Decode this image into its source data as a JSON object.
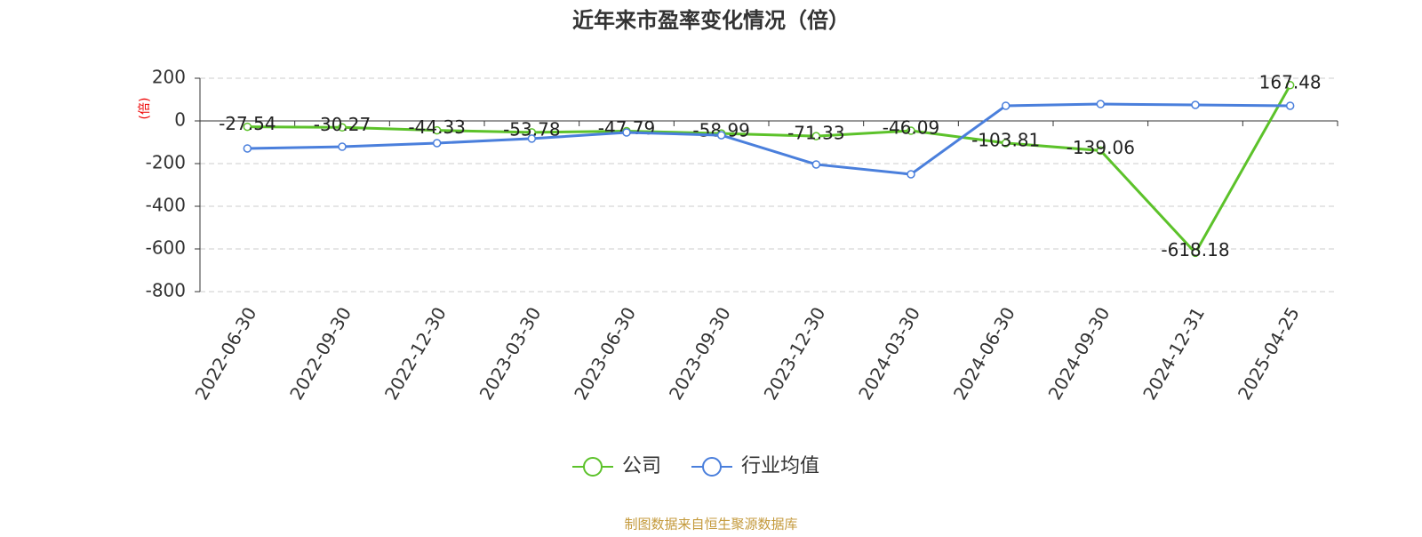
{
  "chart_data": {
    "type": "line",
    "title": "近年来市盈率变化情况（倍）",
    "y_label": "(倍)",
    "categories": [
      "2022-06-30",
      "2022-09-30",
      "2022-12-30",
      "2023-03-30",
      "2023-06-30",
      "2023-09-30",
      "2023-12-30",
      "2024-03-30",
      "2024-06-30",
      "2024-09-30",
      "2024-12-31",
      "2025-04-25"
    ],
    "series": [
      {
        "name": "公司",
        "color": "#5cc22a",
        "values": [
          -27.54,
          -30.27,
          -44.33,
          -53.78,
          -47.79,
          -58.99,
          -71.33,
          -46.09,
          -103.81,
          -139.06,
          -618.18,
          167.48
        ]
      },
      {
        "name": "行业均值",
        "color": "#4a7fdc",
        "values": [
          -129,
          -121,
          -104,
          -83,
          -54,
          -67,
          -204,
          -250,
          71,
          79,
          75,
          71
        ]
      }
    ],
    "ylim": [
      -800,
      200
    ],
    "yticks": [
      -800,
      -600,
      -400,
      -200,
      0,
      200
    ],
    "grid": true,
    "source": "制图数据来自恒生聚源数据库"
  }
}
